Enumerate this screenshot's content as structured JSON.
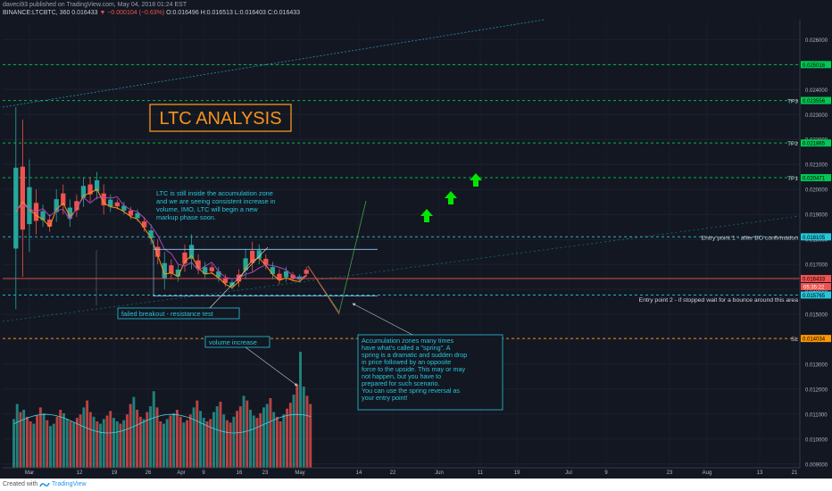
{
  "header": {
    "published_line": "daveci93 published on TradingView.com, May 04, 2018 01:24 EST",
    "symbol": "BINANCE:LTCBTC, 360",
    "last_price": "0.016433",
    "change": "−0.000104 (−0.63%)",
    "open": "O:0.016496",
    "high": "H:0.016513",
    "low": "L:0.016403",
    "close": "C:0.016433"
  },
  "footer": {
    "created_with": "Created with",
    "brand": "TradingView"
  },
  "colors": {
    "background": "#131722",
    "up": "#26a69a",
    "down": "#ef5350",
    "level_green": "#00c853",
    "level_teal": "#26c6da",
    "sl_orange": "#ff9800",
    "current_red": "#ef5350",
    "arrow_green": "#00e600",
    "title_orange": "#f7931a"
  },
  "chart_data": {
    "type": "candlestick",
    "symbol": "BINANCE:LTCBTC",
    "interval": "360",
    "ylim": [
      0.00885,
      0.0268
    ],
    "y_ticks": [
      "0.026000",
      "0.025000",
      "0.024000",
      "0.023000",
      "0.022000",
      "0.021000",
      "0.020000",
      "0.019000",
      "0.018000",
      "0.017000",
      "0.016000",
      "0.015000",
      "0.014000",
      "0.013000",
      "0.012000",
      "0.011000",
      "0.010000",
      "0.009000"
    ],
    "x_ticks": [
      "Mar",
      "12",
      "19",
      "26",
      "Apr",
      "9",
      "16",
      "23",
      "May",
      "14",
      "22",
      "Jun",
      "11",
      "19",
      "Jul",
      "9",
      "23",
      "Aug",
      "13",
      "21"
    ],
    "price_path": [
      [
        0.0152,
        0.0233
      ],
      [
        0.0165,
        0.0228
      ],
      [
        0.0175,
        0.0212
      ],
      [
        0.0182,
        0.02
      ],
      [
        0.0185,
        0.0194
      ],
      [
        0.0183,
        0.019
      ],
      [
        0.0187,
        0.02
      ],
      [
        0.019,
        0.0202
      ],
      [
        0.0185,
        0.0196
      ],
      [
        0.0189,
        0.0198
      ],
      [
        0.0193,
        0.0205
      ],
      [
        0.0195,
        0.0205
      ],
      [
        0.0196,
        0.0207
      ],
      [
        0.019,
        0.0202
      ],
      [
        0.0191,
        0.0198
      ],
      [
        0.0192,
        0.0196
      ],
      [
        0.019,
        0.0195
      ],
      [
        0.0188,
        0.0193
      ],
      [
        0.0187,
        0.0192
      ],
      [
        0.0183,
        0.0189
      ],
      [
        0.0178,
        0.0186
      ],
      [
        0.017,
        0.018
      ],
      [
        0.016,
        0.0175
      ],
      [
        0.0164,
        0.0172
      ],
      [
        0.0163,
        0.017
      ],
      [
        0.0167,
        0.0178
      ],
      [
        0.0168,
        0.0182
      ],
      [
        0.0166,
        0.0174
      ],
      [
        0.0164,
        0.0171
      ],
      [
        0.0166,
        0.017
      ],
      [
        0.0163,
        0.0169
      ],
      [
        0.0161,
        0.0166
      ],
      [
        0.016,
        0.0164
      ],
      [
        0.0161,
        0.0168
      ],
      [
        0.0164,
        0.0176
      ],
      [
        0.0167,
        0.0179
      ],
      [
        0.017,
        0.0178
      ],
      [
        0.0168,
        0.0174
      ],
      [
        0.0164,
        0.0171
      ],
      [
        0.0162,
        0.0168
      ],
      [
        0.0163,
        0.0169
      ],
      [
        0.0163,
        0.0167
      ],
      [
        0.0163,
        0.0166
      ],
      [
        0.0165,
        0.0169
      ]
    ],
    "volume_rel": [
      0.42,
      0.55,
      0.48,
      0.5,
      0.44,
      0.4,
      0.38,
      0.45,
      0.52,
      0.47,
      0.41,
      0.36,
      0.38,
      0.44,
      0.5,
      0.47,
      0.42,
      0.4,
      0.39,
      0.43,
      0.46,
      0.52,
      0.58,
      0.48,
      0.44,
      0.4,
      0.38,
      0.42,
      0.45,
      0.49,
      0.43,
      0.4,
      0.38,
      0.41,
      0.46,
      0.55,
      0.61,
      0.5,
      0.44,
      0.42,
      0.48,
      0.53,
      0.66,
      0.52,
      0.4,
      0.38,
      0.42,
      0.45,
      0.47,
      0.5,
      0.44,
      0.39,
      0.41,
      0.46,
      0.52,
      0.58,
      0.49,
      0.43,
      0.4,
      0.42,
      0.48,
      0.53,
      0.57,
      0.46,
      0.41,
      0.39,
      0.44,
      0.49,
      0.53,
      0.62,
      0.58,
      0.5,
      0.45,
      0.43,
      0.47,
      0.52,
      0.55,
      0.6,
      0.48,
      0.44,
      0.4,
      0.46,
      0.51,
      0.56,
      0.63,
      0.72,
      1.0,
      0.7,
      0.62,
      0.55
    ],
    "levels": [
      {
        "price": 0.025,
        "label": "0.025016",
        "color": "#00c853"
      },
      {
        "price": 0.02356,
        "label": "0.023556",
        "color": "#00c853",
        "marker": "TP3"
      },
      {
        "price": 0.02186,
        "label": "0.021865",
        "color": "#00c853",
        "marker": "TP2"
      },
      {
        "price": 0.02047,
        "label": "0.020471",
        "color": "#00c853",
        "marker": "TP1"
      },
      {
        "price": 0.0181,
        "label": "0.018105",
        "color": "#26c6da"
      },
      {
        "price": 0.01643,
        "label": "0.016433",
        "color": "#ef5350"
      },
      {
        "price": 0.01577,
        "label": "0.015765",
        "color": "#26c6da"
      },
      {
        "price": 0.01403,
        "label": "0.014034",
        "color": "#ff9800",
        "marker": "SL"
      }
    ],
    "countdown": "05:35:22",
    "annotations": {
      "title": "LTC ANALYSIS",
      "accumulation_note": "LTC is still inside the accumulation zone and we are seeing consistent increase in volume, IMO, LTC will begin a new markup phase soon.",
      "failed_breakout": "failed breakout - resistance test",
      "volume_increase": "volume increase",
      "spring_note_1": "Accumulation zones many times have what's called a \"spring\". A spring is a dramatic and sudden drop in price followed by  an opposite force to the upside. This may or may not happen, but you have to prepared for such scenario.",
      "spring_note_2": "You can use the spring reversal as your entry point!",
      "entry_1": "Entry point 1 - after BO confirmation",
      "entry_2": "Entry point 2 - if stopped wait for a bounce around this area"
    }
  }
}
